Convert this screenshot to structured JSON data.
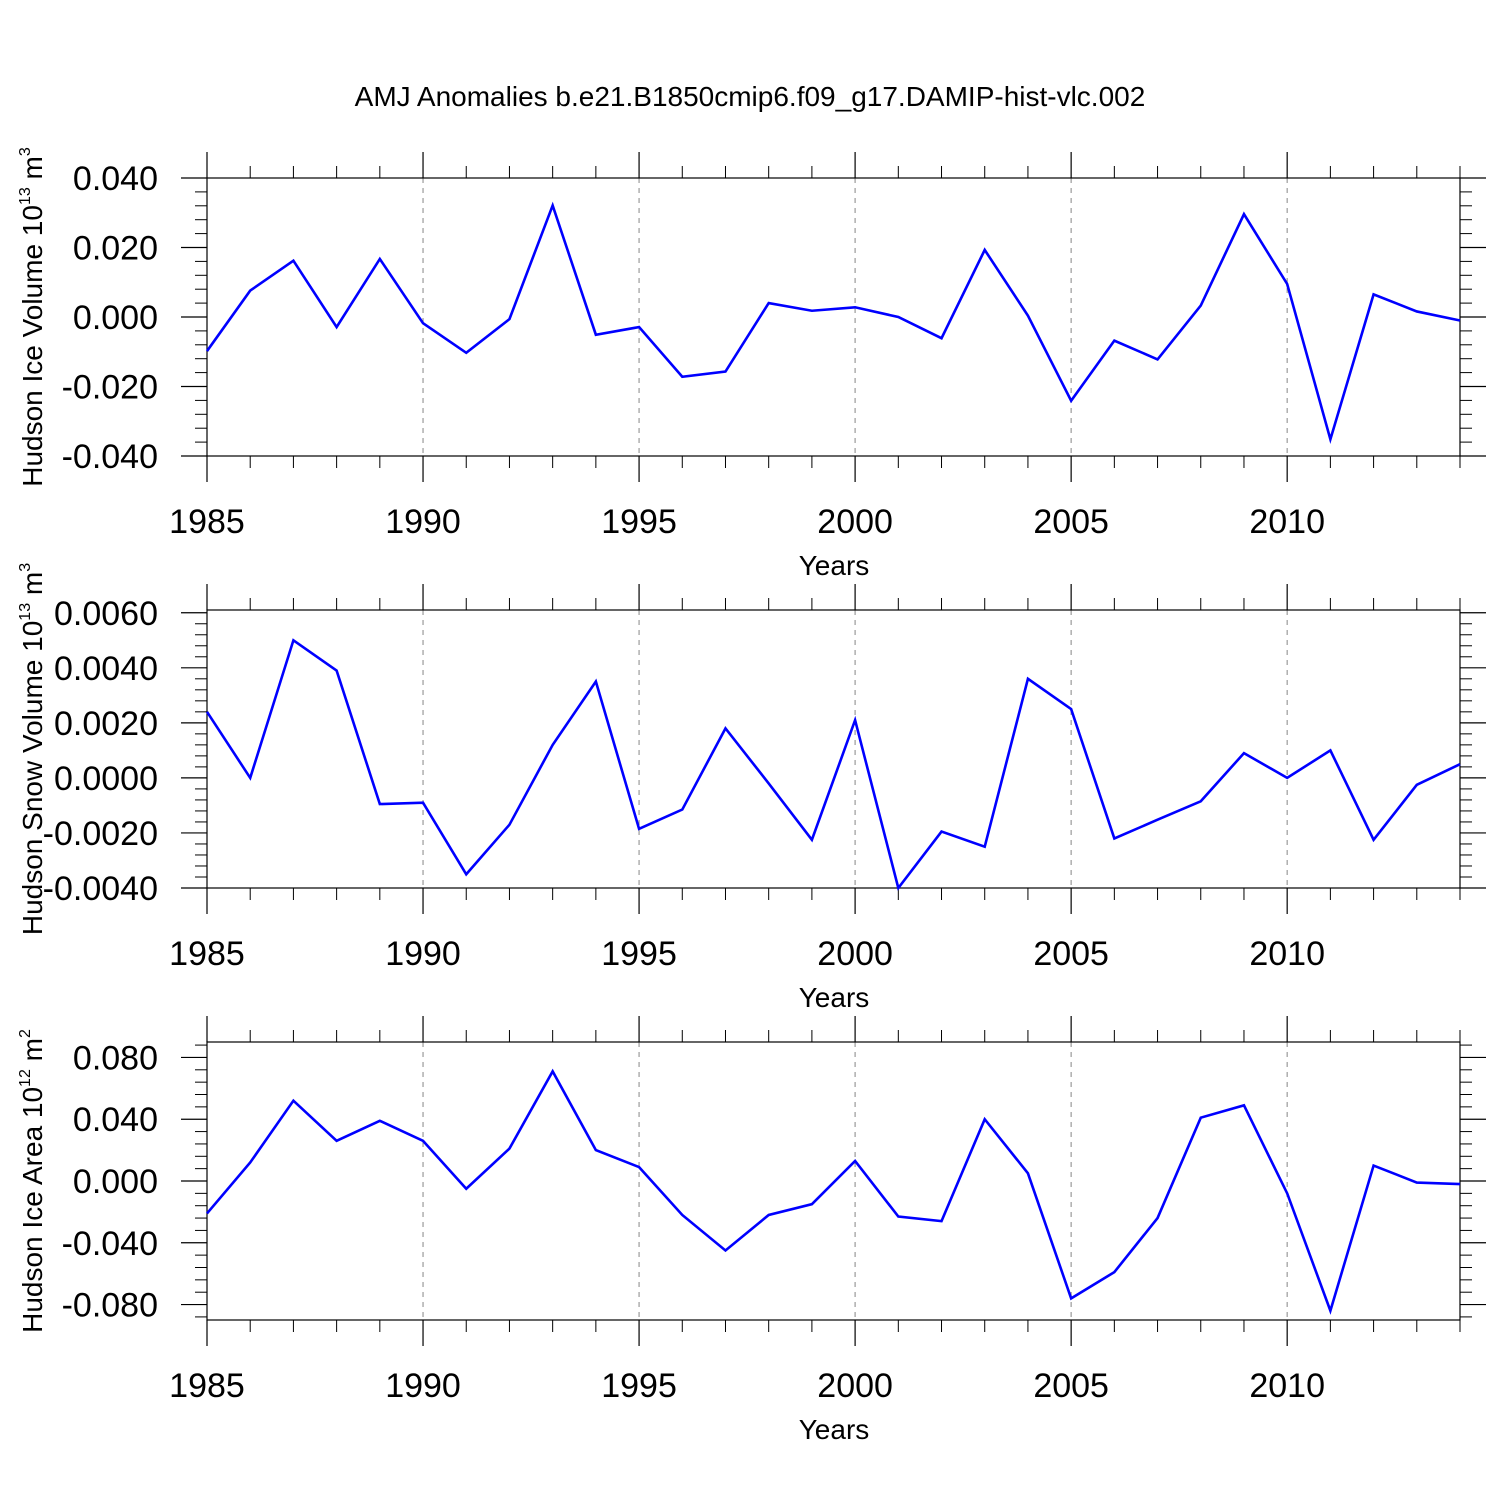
{
  "chart_data": {
    "type": "line",
    "title": "AMJ Anomalies b.e21.B1850cmip6.f09_g17.DAMIP-hist-vlc.002",
    "line_color": "#0000ff",
    "grid_color": "#9a9a9a",
    "x": [
      1985,
      1986,
      1987,
      1988,
      1989,
      1990,
      1991,
      1992,
      1993,
      1994,
      1995,
      1996,
      1997,
      1998,
      1999,
      2000,
      2001,
      2002,
      2003,
      2004,
      2005,
      2006,
      2007,
      2008,
      2009,
      2010,
      2011,
      2012,
      2013,
      2014
    ],
    "xlim": [
      1985,
      2014
    ],
    "x_ticks": [
      1985,
      1990,
      1995,
      2000,
      2005,
      2010
    ],
    "x_tick_labels": [
      "1985",
      "1990",
      "1995",
      "2000",
      "2005",
      "2010"
    ],
    "x_grid": [
      1990,
      1995,
      2000,
      2005,
      2010
    ],
    "panels": [
      {
        "xlabel": "Years",
        "ylabel_main": "Hudson Ice Volume 10",
        "ylabel_exp": "13",
        "ylabel_unit": " m",
        "ylabel_unit_exp": "3",
        "ylim": [
          -0.04,
          0.04
        ],
        "y_ticks": [
          0.04,
          0.02,
          0.0,
          -0.02,
          -0.04
        ],
        "y_tick_labels": [
          "0.040",
          "0.020",
          "0.000",
          "-0.020",
          "-0.040"
        ],
        "series": [
          {
            "name": "Hudson Ice Volume",
            "values": [
              -0.0098,
              0.0076,
              0.0162,
              -0.0029,
              0.0167,
              -0.0018,
              -0.0103,
              -0.0006,
              0.0321,
              -0.0051,
              -0.0029,
              -0.0172,
              -0.0157,
              0.004,
              0.0018,
              0.0028,
              0.0,
              -0.0061,
              0.0193,
              0.0004,
              -0.0241,
              -0.0068,
              -0.0122,
              0.0033,
              0.0296,
              0.0095,
              -0.0352,
              0.0065,
              0.0016,
              -0.001
            ]
          }
        ]
      },
      {
        "xlabel": "Years",
        "ylabel_main": "Hudson Snow Volume 10",
        "ylabel_exp": "13",
        "ylabel_unit": " m",
        "ylabel_unit_exp": "3",
        "ylim": [
          -0.004,
          0.0061
        ],
        "y_ticks": [
          0.006,
          0.004,
          0.002,
          0.0,
          -0.002,
          -0.004
        ],
        "y_tick_labels": [
          "0.0060",
          "0.0040",
          "0.0020",
          "0.0000",
          "-0.0020",
          "-0.0040"
        ],
        "series": [
          {
            "name": "Hudson Snow Volume",
            "values": [
              0.0024,
              0.0,
              0.005,
              0.0039,
              -0.00095,
              -0.0009,
              -0.0035,
              -0.0017,
              0.0012,
              0.0035,
              -0.00185,
              -0.00115,
              0.0018,
              -0.0002,
              -0.00225,
              0.0021,
              -0.004,
              -0.00195,
              -0.0025,
              0.0036,
              0.0025,
              -0.0022,
              -0.00152,
              -0.00085,
              0.0009,
              0.0,
              0.001,
              -0.00225,
              -0.00025,
              0.0005
            ]
          }
        ]
      },
      {
        "xlabel": "Years",
        "ylabel_main": "Hudson Ice Area 10",
        "ylabel_exp": "12",
        "ylabel_unit": " m",
        "ylabel_unit_exp": "2",
        "ylim": [
          -0.09,
          0.09
        ],
        "y_ticks": [
          0.08,
          0.04,
          0.0,
          -0.04,
          -0.08
        ],
        "y_tick_labels": [
          "0.080",
          "0.040",
          "0.000",
          "-0.040",
          "-0.080"
        ],
        "series": [
          {
            "name": "Hudson Ice Area",
            "values": [
              -0.021,
              0.012,
              0.052,
              0.026,
              0.039,
              0.026,
              -0.005,
              0.021,
              0.071,
              0.02,
              0.009,
              -0.022,
              -0.045,
              -0.022,
              -0.015,
              0.013,
              -0.023,
              -0.026,
              0.04,
              0.005,
              -0.076,
              -0.059,
              -0.024,
              0.041,
              0.049,
              -0.008,
              -0.084,
              0.01,
              -0.001,
              -0.002
            ]
          }
        ]
      }
    ]
  }
}
